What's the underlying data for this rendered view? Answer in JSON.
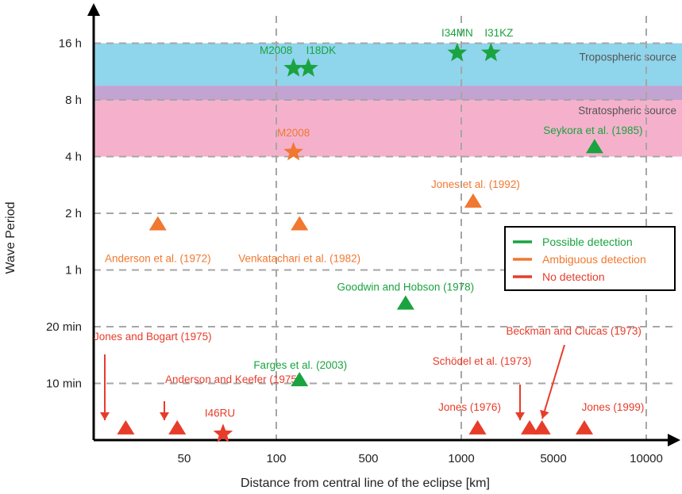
{
  "chart_data": {
    "type": "scatter",
    "xlabel": "Distance from central line of the eclipse [km]",
    "ylabel": "Wave Period",
    "x_scale": "log",
    "xlim": [
      0,
      20000
    ],
    "x_ticks": [
      {
        "value": 50,
        "label": "50"
      },
      {
        "value": 100,
        "label": "100"
      },
      {
        "value": 500,
        "label": "500"
      },
      {
        "value": 1000,
        "label": "1000"
      },
      {
        "value": 5000,
        "label": "5000"
      },
      {
        "value": 10000,
        "label": "10000"
      }
    ],
    "y_ticks": [
      {
        "level": 1,
        "label": "10 min"
      },
      {
        "level": 2,
        "label": "20 min"
      },
      {
        "level": 3,
        "label": "1 h"
      },
      {
        "level": 4,
        "label": "2 h"
      },
      {
        "level": 5,
        "label": "4 h"
      },
      {
        "level": 6,
        "label": "8 h"
      },
      {
        "level": 7,
        "label": "16 h"
      }
    ],
    "ylim": [
      0,
      7.4
    ],
    "bands": [
      {
        "name": "Tropospheric source",
        "from": 6.25,
        "to": 7,
        "color": "#8fd5ec"
      },
      {
        "name": "overlap",
        "from": 6,
        "to": 6.25,
        "color": "#c3a3d1"
      },
      {
        "name": "Stratospheric source",
        "from": 5,
        "to": 6,
        "color": "#f5b1cc"
      }
    ],
    "legend": {
      "position": "right",
      "entries": [
        {
          "label": "Possible detection",
          "color": "#1aa340"
        },
        {
          "label": "Ambiguous detection",
          "color": "#f07830"
        },
        {
          "label": "No detection",
          "color": "#e83c2a"
        }
      ]
    },
    "points": [
      {
        "label": "M2008",
        "x": 135,
        "y": 6.53,
        "marker": "star",
        "status": "possible"
      },
      {
        "label": "I18DK",
        "x": 175,
        "y": 6.53,
        "marker": "star",
        "status": "possible"
      },
      {
        "label": "I34MN",
        "x": 970,
        "y": 6.8,
        "marker": "star",
        "status": "possible"
      },
      {
        "label": "I31KZ",
        "x": 1680,
        "y": 6.8,
        "marker": "star",
        "status": "possible"
      },
      {
        "label": "Seykora et al. (1985)",
        "x": 6800,
        "y": 5.06,
        "marker": "triangle",
        "status": "possible"
      },
      {
        "label": "Goodwin and Hobson (1978)",
        "x": 660,
        "y": 2.3,
        "marker": "triangle",
        "status": "possible"
      },
      {
        "label": "Farges et al. (2003)",
        "x": 150,
        "y": 0.95,
        "marker": "triangle",
        "status": "possible"
      },
      {
        "label": "M2008",
        "x": 135,
        "y": 5.05,
        "marker": "star",
        "status": "ambiguous"
      },
      {
        "label": "Jones et al. (1992)",
        "x": 1230,
        "y": 4.1,
        "marker": "triangle",
        "status": "ambiguous"
      },
      {
        "label": "Anderson et al. (1972)",
        "x": 16,
        "y": 3.7,
        "marker": "triangle",
        "status": "ambiguous"
      },
      {
        "label": "Venkatachari et al. (1982)",
        "x": 150,
        "y": 3.7,
        "marker": "triangle",
        "status": "ambiguous"
      },
      {
        "label": "Jones and Bogart (1975)",
        "x": 4,
        "y": 0.1,
        "marker": "triangle",
        "status": "none"
      },
      {
        "label": "Anderson and Keefer (1975)",
        "x": 37,
        "y": 0.1,
        "marker": "triangle",
        "status": "none"
      },
      {
        "label": "I46RU",
        "x": 67,
        "y": 0.08,
        "marker": "star",
        "status": "none"
      },
      {
        "label": "Jones (1976)",
        "x": 1330,
        "y": 0.1,
        "marker": "triangle",
        "status": "none"
      },
      {
        "label": "Schödel et al. (1973)",
        "x": 3300,
        "y": 0.1,
        "marker": "triangle",
        "status": "none"
      },
      {
        "label": "Beckman and Clucas (1973)",
        "x": 4100,
        "y": 0.1,
        "marker": "triangle",
        "status": "none"
      },
      {
        "label": "Jones (1999)",
        "x": 6300,
        "y": 0.1,
        "marker": "triangle",
        "status": "none"
      }
    ]
  }
}
